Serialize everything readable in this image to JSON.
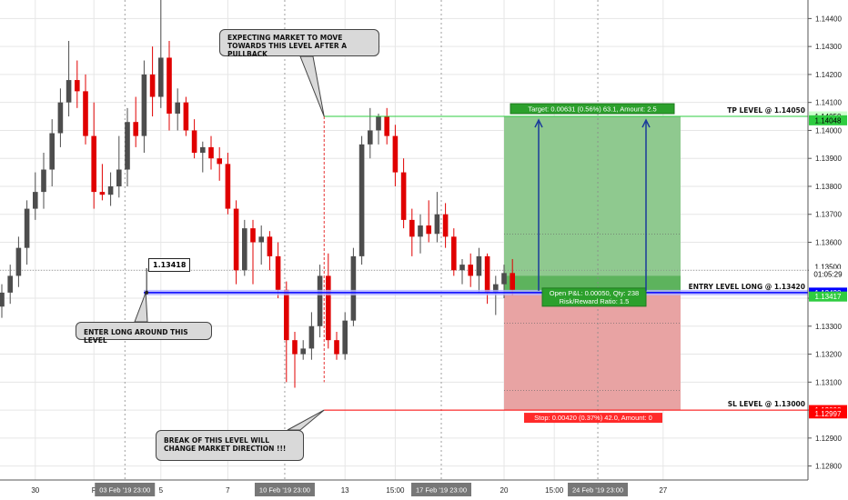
{
  "chart_data": {
    "type": "candlestick",
    "title": "",
    "xlabel": "",
    "ylabel": "",
    "ylim": [
      1.1275,
      1.1445
    ],
    "y_ticks": [
      "1.14400",
      "1.14300",
      "1.14200",
      "1.14100",
      "1.14000",
      "1.13900",
      "1.13800",
      "1.13700",
      "1.13600",
      "1.13500",
      "1.13400",
      "1.13300",
      "1.13200",
      "1.13100",
      "1.13000",
      "1.12900",
      "1.12800"
    ],
    "y_tick_values": [
      1.144,
      1.143,
      1.142,
      1.141,
      1.14,
      1.139,
      1.138,
      1.137,
      1.136,
      1.135,
      1.134,
      1.133,
      1.132,
      1.131,
      1.13,
      1.129,
      1.128
    ],
    "x_ticks": [
      "30",
      "F",
      "5",
      "7",
      "13",
      "15:00",
      "20",
      "15:00",
      "27"
    ],
    "x_tick_bars": [
      4,
      11,
      19,
      27,
      41,
      47,
      60,
      66,
      79
    ],
    "x_highlight_labels": [
      {
        "text": "03 Feb '19   23:00",
        "bar": 14.7
      },
      {
        "text": "10 Feb '19   23:00",
        "bar": 33.8
      },
      {
        "text": "17 Feb '19   23:00",
        "bar": 52.5
      },
      {
        "text": "24 Feb '19   23:00",
        "bar": 71.2
      }
    ],
    "candles": [
      {
        "o": 1.1337,
        "h": 1.1345,
        "l": 1.1333,
        "c": 1.1342
      },
      {
        "o": 1.1342,
        "h": 1.1352,
        "l": 1.1338,
        "c": 1.1348
      },
      {
        "o": 1.1348,
        "h": 1.1362,
        "l": 1.1344,
        "c": 1.1358
      },
      {
        "o": 1.1358,
        "h": 1.1375,
        "l": 1.1352,
        "c": 1.1372
      },
      {
        "o": 1.1372,
        "h": 1.1385,
        "l": 1.1368,
        "c": 1.1378
      },
      {
        "o": 1.1378,
        "h": 1.1392,
        "l": 1.1372,
        "c": 1.1386
      },
      {
        "o": 1.1386,
        "h": 1.1404,
        "l": 1.138,
        "c": 1.1399
      },
      {
        "o": 1.1399,
        "h": 1.1415,
        "l": 1.1394,
        "c": 1.141
      },
      {
        "o": 1.141,
        "h": 1.1432,
        "l": 1.1405,
        "c": 1.1418
      },
      {
        "o": 1.1418,
        "h": 1.1425,
        "l": 1.1408,
        "c": 1.1414
      },
      {
        "o": 1.1414,
        "h": 1.142,
        "l": 1.1395,
        "c": 1.1398
      },
      {
        "o": 1.1398,
        "h": 1.141,
        "l": 1.1372,
        "c": 1.1378
      },
      {
        "o": 1.1378,
        "h": 1.1388,
        "l": 1.1375,
        "c": 1.1377
      },
      {
        "o": 1.1377,
        "h": 1.1385,
        "l": 1.1373,
        "c": 1.138
      },
      {
        "o": 1.138,
        "h": 1.1398,
        "l": 1.1376,
        "c": 1.1386
      },
      {
        "o": 1.1386,
        "h": 1.1408,
        "l": 1.138,
        "c": 1.1403
      },
      {
        "o": 1.1403,
        "h": 1.1412,
        "l": 1.1394,
        "c": 1.1398
      },
      {
        "o": 1.1398,
        "h": 1.1425,
        "l": 1.1392,
        "c": 1.142
      },
      {
        "o": 1.142,
        "h": 1.143,
        "l": 1.1405,
        "c": 1.1412
      },
      {
        "o": 1.1412,
        "h": 1.1448,
        "l": 1.1408,
        "c": 1.1426
      },
      {
        "o": 1.1426,
        "h": 1.1432,
        "l": 1.14,
        "c": 1.1406
      },
      {
        "o": 1.1406,
        "h": 1.1415,
        "l": 1.14,
        "c": 1.141
      },
      {
        "o": 1.141,
        "h": 1.1412,
        "l": 1.1398,
        "c": 1.14
      },
      {
        "o": 1.14,
        "h": 1.1404,
        "l": 1.139,
        "c": 1.1392
      },
      {
        "o": 1.1392,
        "h": 1.1396,
        "l": 1.1385,
        "c": 1.1394
      },
      {
        "o": 1.1394,
        "h": 1.1398,
        "l": 1.1386,
        "c": 1.139
      },
      {
        "o": 1.139,
        "h": 1.1394,
        "l": 1.1382,
        "c": 1.1388
      },
      {
        "o": 1.1388,
        "h": 1.1392,
        "l": 1.137,
        "c": 1.1372
      },
      {
        "o": 1.1372,
        "h": 1.1375,
        "l": 1.1345,
        "c": 1.135
      },
      {
        "o": 1.135,
        "h": 1.1368,
        "l": 1.1348,
        "c": 1.1365
      },
      {
        "o": 1.1365,
        "h": 1.1368,
        "l": 1.1345,
        "c": 1.136
      },
      {
        "o": 1.136,
        "h": 1.1366,
        "l": 1.1352,
        "c": 1.1362
      },
      {
        "o": 1.1362,
        "h": 1.1364,
        "l": 1.135,
        "c": 1.1355
      },
      {
        "o": 1.1355,
        "h": 1.136,
        "l": 1.134,
        "c": 1.1343
      },
      {
        "o": 1.1343,
        "h": 1.1346,
        "l": 1.131,
        "c": 1.1325
      },
      {
        "o": 1.1325,
        "h": 1.1328,
        "l": 1.1308,
        "c": 1.132
      },
      {
        "o": 1.132,
        "h": 1.1325,
        "l": 1.1318,
        "c": 1.1322
      },
      {
        "o": 1.1322,
        "h": 1.1335,
        "l": 1.1318,
        "c": 1.133
      },
      {
        "o": 1.133,
        "h": 1.1352,
        "l": 1.1326,
        "c": 1.1348
      },
      {
        "o": 1.1348,
        "h": 1.1356,
        "l": 1.1322,
        "c": 1.1325
      },
      {
        "o": 1.1325,
        "h": 1.1328,
        "l": 1.1318,
        "c": 1.132
      },
      {
        "o": 1.132,
        "h": 1.1335,
        "l": 1.1318,
        "c": 1.1332
      },
      {
        "o": 1.1332,
        "h": 1.1358,
        "l": 1.133,
        "c": 1.1355
      },
      {
        "o": 1.1355,
        "h": 1.1398,
        "l": 1.1352,
        "c": 1.1395
      },
      {
        "o": 1.1395,
        "h": 1.1408,
        "l": 1.139,
        "c": 1.14
      },
      {
        "o": 1.14,
        "h": 1.1406,
        "l": 1.1395,
        "c": 1.1405
      },
      {
        "o": 1.1405,
        "h": 1.1408,
        "l": 1.1395,
        "c": 1.1398
      },
      {
        "o": 1.1398,
        "h": 1.1402,
        "l": 1.138,
        "c": 1.1385
      },
      {
        "o": 1.1385,
        "h": 1.139,
        "l": 1.1365,
        "c": 1.1368
      },
      {
        "o": 1.1368,
        "h": 1.1372,
        "l": 1.1355,
        "c": 1.1362
      },
      {
        "o": 1.1362,
        "h": 1.137,
        "l": 1.1356,
        "c": 1.1366
      },
      {
        "o": 1.1366,
        "h": 1.1375,
        "l": 1.136,
        "c": 1.1363
      },
      {
        "o": 1.1363,
        "h": 1.1378,
        "l": 1.136,
        "c": 1.137
      },
      {
        "o": 1.137,
        "h": 1.1374,
        "l": 1.1358,
        "c": 1.1362
      },
      {
        "o": 1.1362,
        "h": 1.1365,
        "l": 1.1348,
        "c": 1.135
      },
      {
        "o": 1.135,
        "h": 1.1354,
        "l": 1.1345,
        "c": 1.1352
      },
      {
        "o": 1.1352,
        "h": 1.1356,
        "l": 1.1344,
        "c": 1.1348
      },
      {
        "o": 1.1348,
        "h": 1.1358,
        "l": 1.1342,
        "c": 1.1355
      },
      {
        "o": 1.1355,
        "h": 1.1356,
        "l": 1.1338,
        "c": 1.1342
      },
      {
        "o": 1.1342,
        "h": 1.1348,
        "l": 1.1334,
        "c": 1.1345
      },
      {
        "o": 1.1345,
        "h": 1.1352,
        "l": 1.134,
        "c": 1.1349
      },
      {
        "o": 1.1349,
        "h": 1.1354,
        "l": 1.1341,
        "c": 1.1343
      }
    ],
    "levels": {
      "tp": {
        "price": 1.1405,
        "label": "TP LEVEL @ 1.14050",
        "color": "#2ecc40"
      },
      "entry": {
        "price": 1.1342,
        "label": "ENTRY LEVEL LONG @ 1.13420",
        "color": "#0000ff"
      },
      "sl": {
        "price": 1.13,
        "label": "SL LEVEL @ 1.13000",
        "color": "#ff0000"
      }
    },
    "position": {
      "target_text": "Target: 0.00631 (0.56%) 63.1, Amount: 2.5",
      "open_text": "Open P&L: 0.00050, Qty: 238",
      "rr_text": "Risk/Reward Ratio: 1.5",
      "stop_text": "Stop: 0.00420 (0.37%) 42.0, Amount: 0"
    },
    "price_labels": [
      {
        "text": "1.14050",
        "price": 1.1405,
        "bg": "#ccffcc",
        "fg": "#000000"
      },
      {
        "text": "1.14048",
        "price": 1.14036,
        "bg": "#2ecc40",
        "fg": "#000000"
      },
      {
        "text": "1.13500",
        "price": 1.13513,
        "bg": "#ffffff",
        "fg": "#000000"
      },
      {
        "text": "01:05:29",
        "price": 1.13487,
        "bg": "#ffffff",
        "fg": "#000000"
      },
      {
        "text": "1.13420",
        "price": 1.1342,
        "bg": "#0000ff",
        "fg": "#ffffff"
      },
      {
        "text": "1.13417",
        "price": 1.13406,
        "bg": "#2ecc40",
        "fg": "#ffffff"
      },
      {
        "text": "1.13000",
        "price": 1.13,
        "bg": "#ff0000",
        "fg": "#ffffff"
      },
      {
        "text": "1.12997",
        "price": 1.12988,
        "bg": "#ff0000",
        "fg": "#ffffff"
      }
    ],
    "annotations": {
      "pointer_label": "1.13418",
      "expecting": "EXPECTING MARKET TO MOVE TOWARDS THIS LEVEL AFTER A PULLBACK",
      "enter": "ENTER LONG AROUND THIS LEVEL",
      "break": "BREAK OF THIS LEVEL WILL CHANGE MARKET DIRECTION !!!"
    },
    "colors": {
      "up": "#4d4d4d",
      "down": "#e00000",
      "grid": "#e6e6e6"
    }
  }
}
